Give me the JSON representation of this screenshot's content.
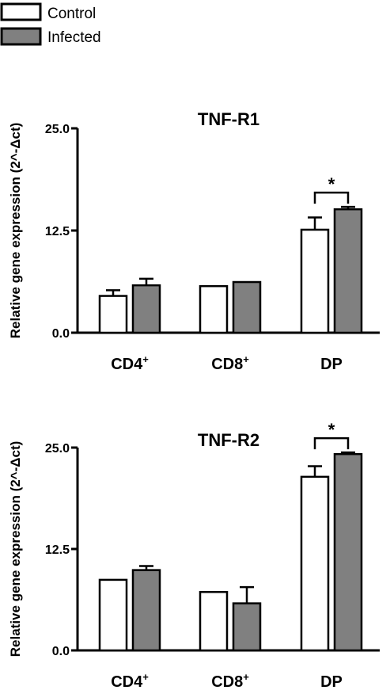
{
  "legend": [
    {
      "label": "Control",
      "color": "#ffffff"
    },
    {
      "label": "Infected",
      "color": "#808080"
    }
  ],
  "colors": {
    "control": "#ffffff",
    "infected": "#808080",
    "stroke": "#000000"
  },
  "chart_data": [
    {
      "type": "bar",
      "title": "TNF-R1",
      "ylabel": "Relative gene expression (2^-Δct)",
      "ylim": [
        0,
        25
      ],
      "yticks": [
        "0.0",
        "12.5",
        "25.0"
      ],
      "categories": [
        "CD4+",
        "CD8+",
        "DP"
      ],
      "series": [
        {
          "name": "Control",
          "values": [
            4.5,
            5.7,
            12.6
          ],
          "errors": [
            0.7,
            0.0,
            1.5
          ]
        },
        {
          "name": "Infected",
          "values": [
            5.8,
            6.2,
            15.1
          ],
          "errors": [
            0.8,
            0.0,
            0.3
          ]
        }
      ],
      "annotations": [
        {
          "text": "*",
          "category": "DP"
        }
      ]
    },
    {
      "type": "bar",
      "title": "TNF-R2",
      "ylabel": "Relative gene expression (2^-Δct)",
      "ylim": [
        0,
        25
      ],
      "yticks": [
        "0.0",
        "12.5",
        "25.0"
      ],
      "categories": [
        "CD4+",
        "CD8+",
        "DP"
      ],
      "series": [
        {
          "name": "Control",
          "values": [
            8.7,
            7.2,
            21.4
          ],
          "errors": [
            0.0,
            0.0,
            1.3
          ]
        },
        {
          "name": "Infected",
          "values": [
            9.9,
            5.8,
            24.2
          ],
          "errors": [
            0.5,
            2.0,
            0.2
          ]
        }
      ],
      "annotations": [
        {
          "text": "*",
          "category": "DP"
        }
      ]
    }
  ]
}
